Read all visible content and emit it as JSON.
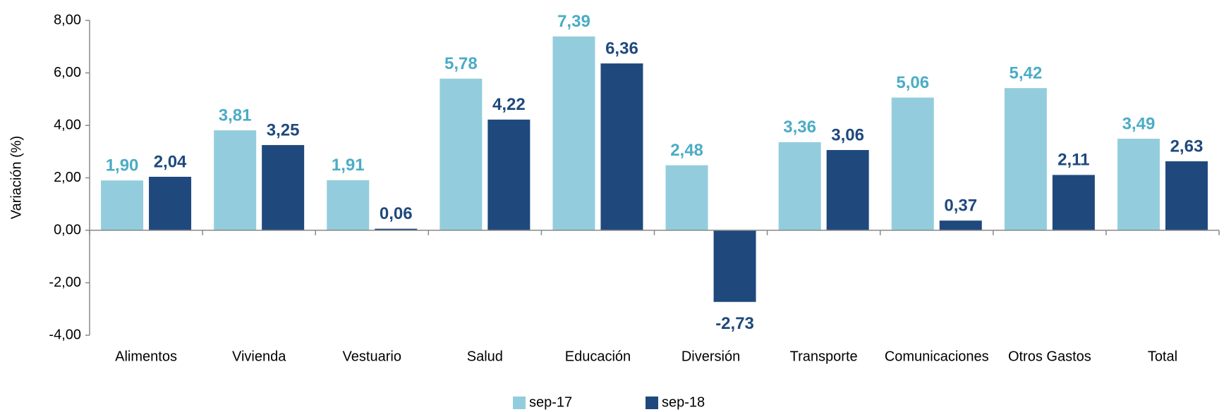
{
  "chart_data": {
    "type": "bar",
    "y_label": "Variación (%)",
    "categories": [
      "Alimentos",
      "Vivienda",
      "Vestuario",
      "Salud",
      "Educación",
      "Diversión",
      "Transporte",
      "Comunicaciones",
      "Otros Gastos",
      "Total"
    ],
    "series": [
      {
        "name": "sep-17",
        "color": "#93cddd",
        "label_color": "#4bacc6",
        "values": [
          1.9,
          3.81,
          1.91,
          5.78,
          7.39,
          2.48,
          3.36,
          5.06,
          5.42,
          3.49
        ],
        "value_labels": [
          "1,90",
          "3,81",
          "1,91",
          "5,78",
          "7,39",
          "2,48",
          "3,36",
          "5,06",
          "5,42",
          "3,49"
        ]
      },
      {
        "name": "sep-18",
        "color": "#1f497d",
        "label_color": "#1f497d",
        "values": [
          2.04,
          3.25,
          0.06,
          4.22,
          6.36,
          -2.73,
          3.06,
          0.37,
          2.11,
          2.63
        ],
        "value_labels": [
          "2,04",
          "3,25",
          "0,06",
          "4,22",
          "6,36",
          "-2,73",
          "3,06",
          "0,37",
          "2,11",
          "2,63"
        ]
      }
    ],
    "ylim": [
      -4,
      8
    ],
    "yticks": [
      {
        "value": -4,
        "label": "-4,00"
      },
      {
        "value": -2,
        "label": "-2,00"
      },
      {
        "value": 0,
        "label": "0,00"
      },
      {
        "value": 2,
        "label": "2,00"
      },
      {
        "value": 4,
        "label": "4,00"
      },
      {
        "value": 6,
        "label": "6,00"
      },
      {
        "value": 8,
        "label": "8,00"
      }
    ],
    "grid": false,
    "legend": "bottom"
  }
}
